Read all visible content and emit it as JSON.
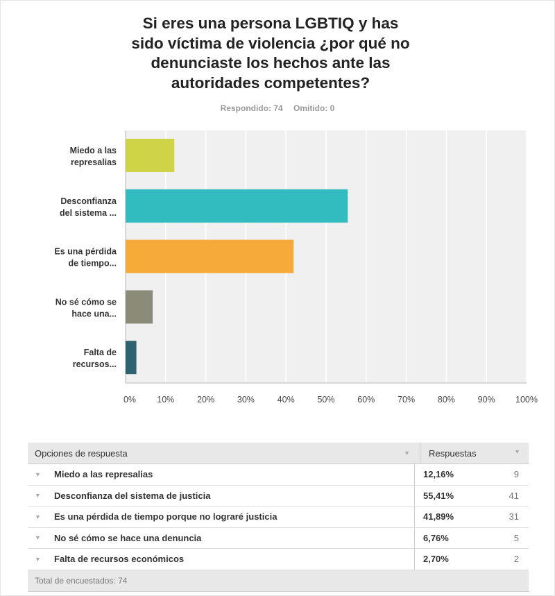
{
  "chart_data": {
    "type": "bar",
    "orientation": "horizontal",
    "title_lines": [
      "Si eres una persona LGBTIQ y has",
      "sido víctima de violencia ¿por qué no",
      "denunciaste los hechos ante las",
      "autoridades competentes?"
    ],
    "categories": [
      [
        "Miedo a las",
        "represalias"
      ],
      [
        "Desconfianza",
        "del sistema ..."
      ],
      [
        "Es una pérdida",
        "de tiempo..."
      ],
      [
        "No sé cómo se",
        "hace una..."
      ],
      [
        "Falta de",
        "recursos..."
      ]
    ],
    "values": [
      12.16,
      55.41,
      41.89,
      6.76,
      2.7
    ],
    "colors": [
      "#cfd347",
      "#33bcc0",
      "#f5aa3a",
      "#8b8b7a",
      "#2f6270"
    ],
    "xlim": [
      0,
      100
    ],
    "xticks": [
      "0%",
      "10%",
      "20%",
      "30%",
      "40%",
      "50%",
      "60%",
      "70%",
      "80%",
      "90%",
      "100%"
    ],
    "grid": true
  },
  "meta": {
    "answered": "Respondido: 74",
    "skipped": "Omitido: 0"
  },
  "table": {
    "headers": [
      "Opciones de respuesta",
      "Respuestas"
    ],
    "rows": [
      {
        "label": "Miedo a las represalias",
        "pct": "12,16%",
        "count": "9"
      },
      {
        "label": "Desconfianza del sistema de justicia",
        "pct": "55,41%",
        "count": "41"
      },
      {
        "label": "Es una pérdida de tiempo porque no lograré justicia",
        "pct": "41,89%",
        "count": "31"
      },
      {
        "label": "No sé cómo se hace una denuncia",
        "pct": "6,76%",
        "count": "5"
      },
      {
        "label": "Falta de recursos económicos",
        "pct": "2,70%",
        "count": "2"
      }
    ],
    "total": "Total de encuestados: 74"
  }
}
